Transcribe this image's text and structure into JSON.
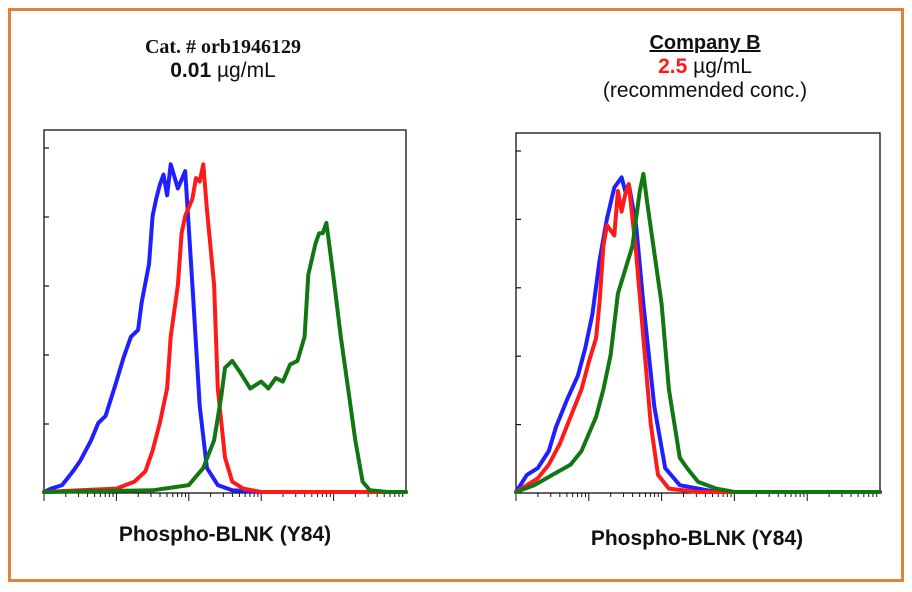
{
  "colors": {
    "frame": "#E0823A",
    "highlight": "#ff1a1a"
  },
  "panels": [
    {
      "title_line1": "Cat. # orb1946129",
      "conc_value": "0.01",
      "conc_unit": " µg/mL",
      "note": ""
    },
    {
      "title_line1": "Company B",
      "conc_value": "2.5",
      "conc_unit": " µg/mL",
      "note": "(recommended conc.)"
    }
  ],
  "chart_data": [
    {
      "type": "line",
      "xlabel": "Phospho-BLNK (Y84)",
      "ylabel": "",
      "title": "",
      "xscale": "log",
      "xlim": [
        0,
        1
      ],
      "ylim": [
        0,
        1
      ],
      "series": [
        {
          "color": "#1f1fff",
          "x": [
            0,
            0.02,
            0.05,
            0.08,
            0.1,
            0.13,
            0.15,
            0.17,
            0.2,
            0.22,
            0.24,
            0.26,
            0.27,
            0.29,
            0.3,
            0.31,
            0.32,
            0.33,
            0.34,
            0.35,
            0.37,
            0.39,
            0.41,
            0.43,
            0.45,
            0.48,
            0.52,
            0.6,
            0.8,
            1.0
          ],
          "y": [
            0,
            0.01,
            0.02,
            0.06,
            0.09,
            0.15,
            0.2,
            0.22,
            0.32,
            0.39,
            0.45,
            0.47,
            0.55,
            0.66,
            0.8,
            0.85,
            0.89,
            0.92,
            0.86,
            0.95,
            0.88,
            0.93,
            0.6,
            0.25,
            0.07,
            0.02,
            0.005,
            0,
            0,
            0
          ]
        },
        {
          "color": "#ff1a1a",
          "x": [
            0,
            0.1,
            0.2,
            0.25,
            0.28,
            0.3,
            0.32,
            0.34,
            0.35,
            0.37,
            0.38,
            0.39,
            0.41,
            0.42,
            0.43,
            0.44,
            0.45,
            0.47,
            0.48,
            0.5,
            0.52,
            0.55,
            0.6,
            0.8,
            1.0
          ],
          "y": [
            0,
            0.005,
            0.01,
            0.03,
            0.06,
            0.12,
            0.2,
            0.3,
            0.45,
            0.6,
            0.75,
            0.8,
            0.85,
            0.91,
            0.9,
            0.95,
            0.82,
            0.6,
            0.3,
            0.1,
            0.03,
            0.01,
            0,
            0,
            0
          ]
        },
        {
          "color": "#117711",
          "x": [
            0,
            0.3,
            0.4,
            0.44,
            0.47,
            0.49,
            0.5,
            0.52,
            0.54,
            0.57,
            0.6,
            0.62,
            0.64,
            0.66,
            0.68,
            0.7,
            0.72,
            0.73,
            0.75,
            0.76,
            0.77,
            0.78,
            0.8,
            0.82,
            0.84,
            0.86,
            0.88,
            0.9,
            0.95,
            1.0
          ],
          "y": [
            0,
            0.005,
            0.02,
            0.07,
            0.15,
            0.28,
            0.36,
            0.38,
            0.35,
            0.3,
            0.32,
            0.3,
            0.33,
            0.32,
            0.37,
            0.38,
            0.45,
            0.63,
            0.72,
            0.75,
            0.75,
            0.78,
            0.62,
            0.45,
            0.3,
            0.15,
            0.03,
            0.005,
            0,
            0
          ]
        }
      ]
    },
    {
      "type": "line",
      "xlabel": "Phospho-BLNK (Y84)",
      "ylabel": "",
      "title": "",
      "xscale": "log",
      "xlim": [
        0,
        1
      ],
      "ylim": [
        0,
        1
      ],
      "series": [
        {
          "color": "#1f1fff",
          "x": [
            0,
            0.03,
            0.06,
            0.09,
            0.11,
            0.14,
            0.17,
            0.19,
            0.21,
            0.23,
            0.25,
            0.27,
            0.29,
            0.3,
            0.31,
            0.33,
            0.35,
            0.38,
            0.41,
            0.45,
            0.55,
            0.8,
            1.0
          ],
          "y": [
            0,
            0.05,
            0.07,
            0.12,
            0.19,
            0.27,
            0.34,
            0.42,
            0.52,
            0.68,
            0.8,
            0.89,
            0.92,
            0.88,
            0.9,
            0.78,
            0.55,
            0.25,
            0.07,
            0.02,
            0,
            0,
            0
          ]
        },
        {
          "color": "#ff1a1a",
          "x": [
            0,
            0.03,
            0.06,
            0.09,
            0.12,
            0.15,
            0.18,
            0.2,
            0.22,
            0.23,
            0.24,
            0.25,
            0.27,
            0.28,
            0.29,
            0.3,
            0.31,
            0.33,
            0.35,
            0.37,
            0.39,
            0.42,
            0.5,
            0.8,
            1.0
          ],
          "y": [
            0,
            0.02,
            0.04,
            0.08,
            0.14,
            0.22,
            0.3,
            0.38,
            0.45,
            0.56,
            0.72,
            0.78,
            0.75,
            0.88,
            0.82,
            0.87,
            0.9,
            0.7,
            0.45,
            0.2,
            0.05,
            0.01,
            0,
            0,
            0
          ]
        },
        {
          "color": "#117711",
          "x": [
            0,
            0.05,
            0.1,
            0.15,
            0.18,
            0.2,
            0.22,
            0.24,
            0.26,
            0.28,
            0.3,
            0.32,
            0.34,
            0.35,
            0.36,
            0.38,
            0.4,
            0.42,
            0.45,
            0.47,
            0.5,
            0.55,
            0.6,
            0.7,
            1.0
          ],
          "y": [
            0,
            0.02,
            0.05,
            0.08,
            0.12,
            0.17,
            0.22,
            0.3,
            0.4,
            0.58,
            0.65,
            0.72,
            0.88,
            0.93,
            0.85,
            0.7,
            0.55,
            0.3,
            0.1,
            0.07,
            0.03,
            0.01,
            0,
            0,
            0
          ]
        }
      ]
    }
  ]
}
